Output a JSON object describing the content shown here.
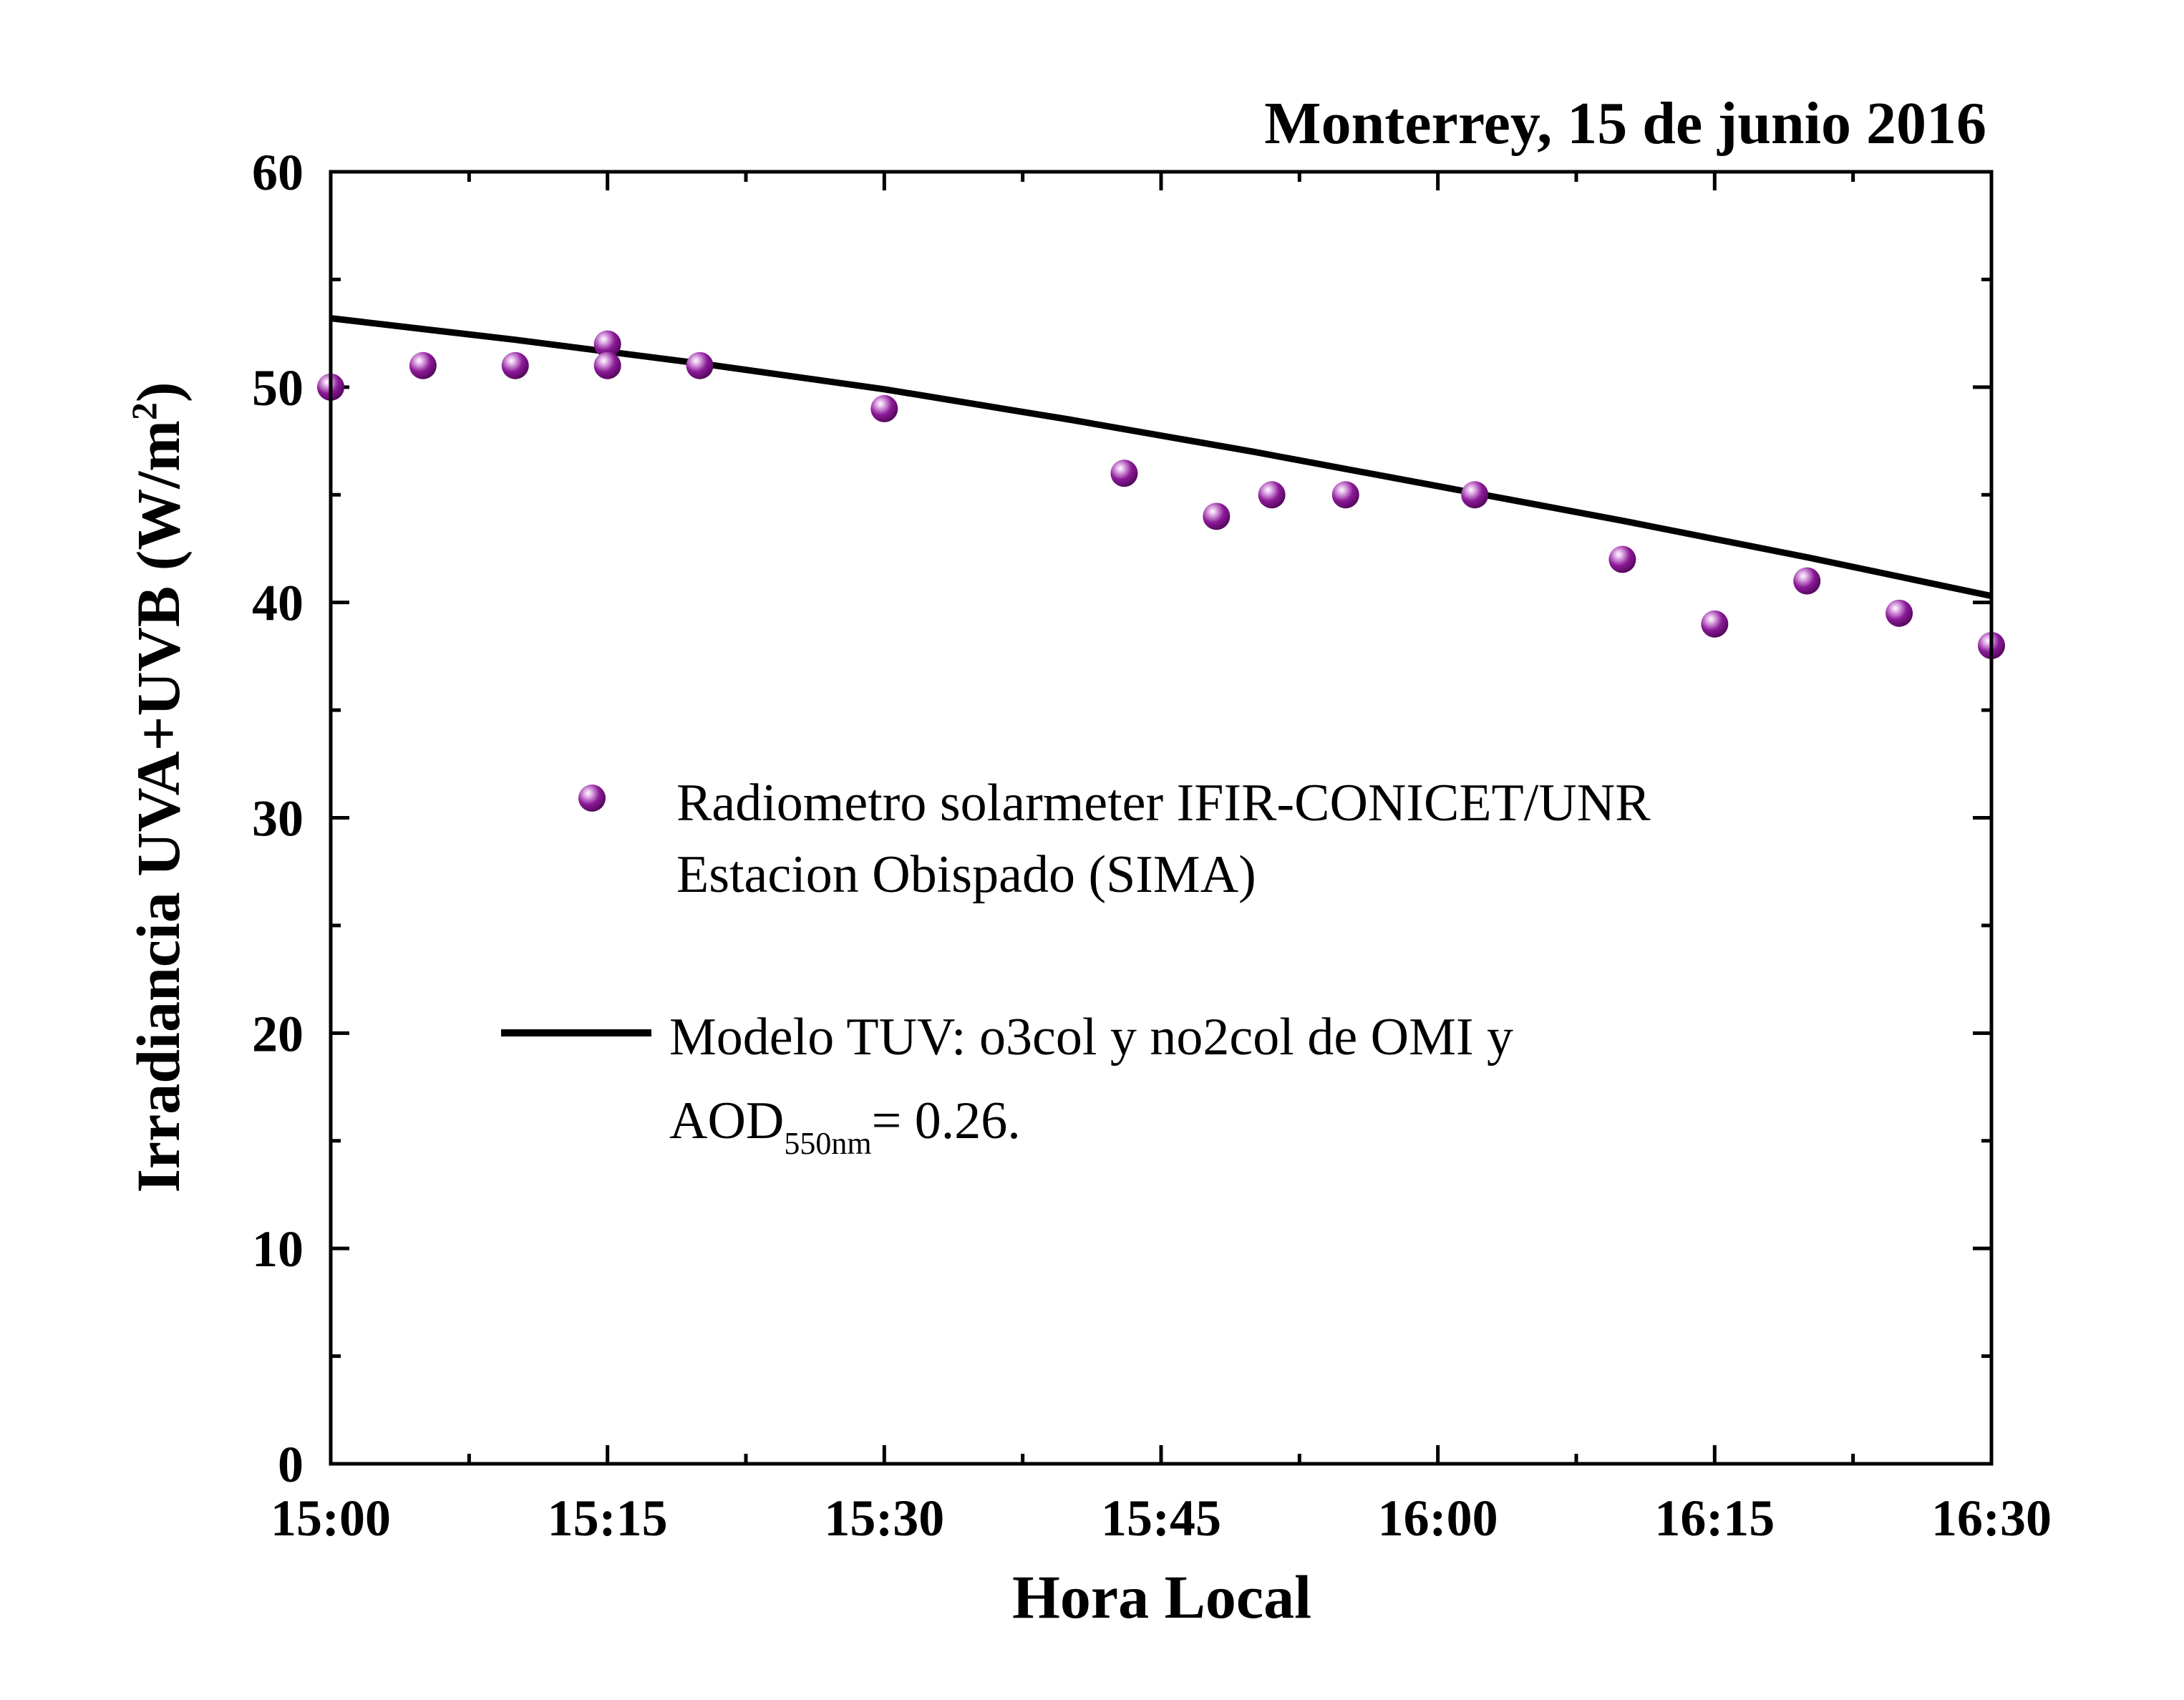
{
  "chart_data": {
    "type": "scatter",
    "title": "Monterrey, 15 de junio 2016",
    "xlabel": "Hora Local",
    "ylabel": {
      "main": "Irradiancia UVA+UVB (W/m",
      "sup": "2",
      "close": ")"
    },
    "xlim": [
      0,
      90
    ],
    "ylim": [
      0,
      60
    ],
    "xticks": [
      {
        "value": 0,
        "label": "15:00"
      },
      {
        "value": 15,
        "label": "15:15"
      },
      {
        "value": 30,
        "label": "15:30"
      },
      {
        "value": 45,
        "label": "15:45"
      },
      {
        "value": 60,
        "label": "16:00"
      },
      {
        "value": 75,
        "label": "16:15"
      },
      {
        "value": 90,
        "label": "16:30"
      }
    ],
    "xminor_step": 7.5,
    "yticks": [
      {
        "value": 0,
        "label": "0"
      },
      {
        "value": 10,
        "label": "10"
      },
      {
        "value": 20,
        "label": "20"
      },
      {
        "value": 30,
        "label": "30"
      },
      {
        "value": 40,
        "label": "40"
      },
      {
        "value": 50,
        "label": "50"
      },
      {
        "value": 60,
        "label": "60"
      }
    ],
    "yminor_step": 5,
    "grid": false,
    "legend_position": "center",
    "series": [
      {
        "type": "scatter",
        "legend_lines": [
          "Radiometro solarmeter IFIR-CONICET/UNR",
          "Estacion Obispado (SIMA)"
        ],
        "color": "#7d0f86",
        "x": [
          0,
          5,
          10,
          15,
          15,
          20,
          30,
          43,
          48,
          51,
          55,
          62,
          70,
          75,
          80,
          85,
          90
        ],
        "y": [
          50,
          51,
          51,
          52,
          51,
          51,
          49,
          46,
          44,
          45,
          45,
          45,
          42,
          39,
          41,
          39.5,
          38
        ]
      },
      {
        "type": "line",
        "legend_line1": "Modelo TUV: o3col y no2col de OMI y",
        "legend_line2": {
          "main": "AOD",
          "sub": "550nm",
          "rest": "= 0.26."
        },
        "color": "#000000",
        "x": [
          0,
          10,
          20,
          30,
          40,
          50,
          60,
          70,
          80,
          90
        ],
        "y": [
          53.2,
          52.2,
          51.1,
          49.9,
          48.5,
          47.0,
          45.4,
          43.8,
          42.1,
          40.3
        ]
      }
    ]
  }
}
